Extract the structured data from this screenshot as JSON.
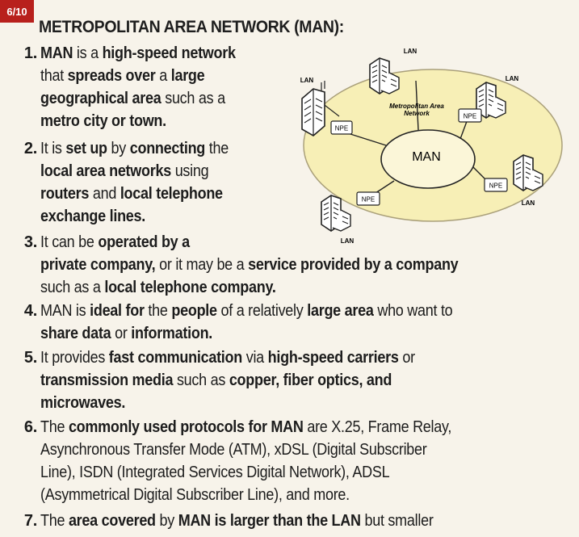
{
  "page_badge": "6/10",
  "title": "METROPOLITAN AREA NETWORK (MAN):",
  "diagram": {
    "center_label": "MAN",
    "ring_label_line1": "Metropolitan Area",
    "ring_label_line2": "Network",
    "lan_label": "LAN",
    "npe_label": "NPE"
  },
  "items": [
    {
      "number": "1.",
      "lines": [
        [
          {
            "t": "MAN",
            "b": true
          },
          {
            "t": " is a ",
            "b": false
          },
          {
            "t": "high-speed network",
            "b": true
          }
        ],
        [
          {
            "t": "that ",
            "b": false
          },
          {
            "t": "spreads over",
            "b": true
          },
          {
            "t": " a ",
            "b": false
          },
          {
            "t": "large",
            "b": true
          }
        ],
        [
          {
            "t": "geographical area",
            "b": true
          },
          {
            "t": " such as a",
            "b": false
          }
        ],
        [
          {
            "t": "metro city or town.",
            "b": true
          }
        ]
      ]
    },
    {
      "number": "2.",
      "lines": [
        [
          {
            "t": "It is ",
            "b": false
          },
          {
            "t": "set up",
            "b": true
          },
          {
            "t": " by ",
            "b": false
          },
          {
            "t": "connecting",
            "b": true
          },
          {
            "t": " the",
            "b": false
          }
        ],
        [
          {
            "t": "local area networks",
            "b": true
          },
          {
            "t": " using",
            "b": false
          }
        ],
        [
          {
            "t": "routers",
            "b": true
          },
          {
            "t": " and ",
            "b": false
          },
          {
            "t": "local telephone",
            "b": true
          }
        ],
        [
          {
            "t": "exchange lines.",
            "b": true
          }
        ]
      ]
    },
    {
      "number": "3.",
      "lines": [
        [
          {
            "t": "It can be ",
            "b": false
          },
          {
            "t": "operated by a",
            "b": true
          }
        ],
        [
          {
            "t": "private company,",
            "b": true
          },
          {
            "t": " or it may be a ",
            "b": false
          },
          {
            "t": "service provided by a company",
            "b": true
          }
        ],
        [
          {
            "t": "such as a ",
            "b": false
          },
          {
            "t": "local telephone company.",
            "b": true
          }
        ]
      ]
    },
    {
      "number": "4.",
      "lines": [
        [
          {
            "t": "MAN is ",
            "b": false
          },
          {
            "t": "ideal for",
            "b": true
          },
          {
            "t": " the ",
            "b": false
          },
          {
            "t": "people",
            "b": true
          },
          {
            "t": " of a relatively ",
            "b": false
          },
          {
            "t": "large area",
            "b": true
          },
          {
            "t": " who want to",
            "b": false
          }
        ],
        [
          {
            "t": "share data",
            "b": true
          },
          {
            "t": " or ",
            "b": false
          },
          {
            "t": "information.",
            "b": true
          }
        ]
      ]
    },
    {
      "number": "5.",
      "lines": [
        [
          {
            "t": "It provides ",
            "b": false
          },
          {
            "t": "fast communication",
            "b": true
          },
          {
            "t": " via ",
            "b": false
          },
          {
            "t": "high-speed carriers",
            "b": true
          },
          {
            "t": " or",
            "b": false
          }
        ],
        [
          {
            "t": "transmission media",
            "b": true
          },
          {
            "t": " such as ",
            "b": false
          },
          {
            "t": "copper, fiber optics, and",
            "b": true
          }
        ],
        [
          {
            "t": "microwaves.",
            "b": true
          }
        ]
      ]
    },
    {
      "number": "6.",
      "lines": [
        [
          {
            "t": "The ",
            "b": false
          },
          {
            "t": "commonly used protocols for MAN",
            "b": true
          },
          {
            "t": " are X.25, Frame Relay,",
            "b": false
          }
        ],
        [
          {
            "t": "Asynchronous Transfer Mode (ATM), xDSL (Digital Subscriber",
            "b": false
          }
        ],
        [
          {
            "t": "Line), ISDN (Integrated Services Digital Network), ADSL",
            "b": false
          }
        ],
        [
          {
            "t": "(Asymmetrical Digital Subscriber Line), and more.",
            "b": false
          }
        ]
      ]
    },
    {
      "number": "7.",
      "lines": [
        [
          {
            "t": "The ",
            "b": false
          },
          {
            "t": "area covered",
            "b": true
          },
          {
            "t": " by ",
            "b": false
          },
          {
            "t": "MAN is larger than the LAN",
            "b": true
          },
          {
            "t": " but smaller",
            "b": false
          }
        ]
      ]
    }
  ]
}
